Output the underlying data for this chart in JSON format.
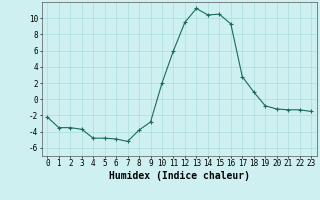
{
  "x": [
    0,
    1,
    2,
    3,
    4,
    5,
    6,
    7,
    8,
    9,
    10,
    11,
    12,
    13,
    14,
    15,
    16,
    17,
    18,
    19,
    20,
    21,
    22,
    23
  ],
  "y": [
    -2.2,
    -3.5,
    -3.5,
    -3.7,
    -4.8,
    -4.8,
    -4.9,
    -5.2,
    -3.8,
    -2.8,
    2.0,
    6.0,
    9.5,
    11.2,
    10.4,
    10.5,
    9.3,
    2.8,
    0.9,
    -0.8,
    -1.2,
    -1.3,
    -1.3,
    -1.5
  ],
  "line_color": "#1a6b5a",
  "marker": "+",
  "marker_size": 3,
  "marker_linewidth": 0.8,
  "line_width": 0.8,
  "bg_color": "#cff0f0",
  "grid_color": "#aadddd",
  "xlabel": "Humidex (Indice chaleur)",
  "xlim": [
    -0.5,
    23.5
  ],
  "ylim": [
    -7,
    12
  ],
  "yticks": [
    -6,
    -4,
    -2,
    0,
    2,
    4,
    6,
    8,
    10
  ],
  "xticks": [
    0,
    1,
    2,
    3,
    4,
    5,
    6,
    7,
    8,
    9,
    10,
    11,
    12,
    13,
    14,
    15,
    16,
    17,
    18,
    19,
    20,
    21,
    22,
    23
  ],
  "tick_fontsize": 5.5,
  "xlabel_fontsize": 7
}
